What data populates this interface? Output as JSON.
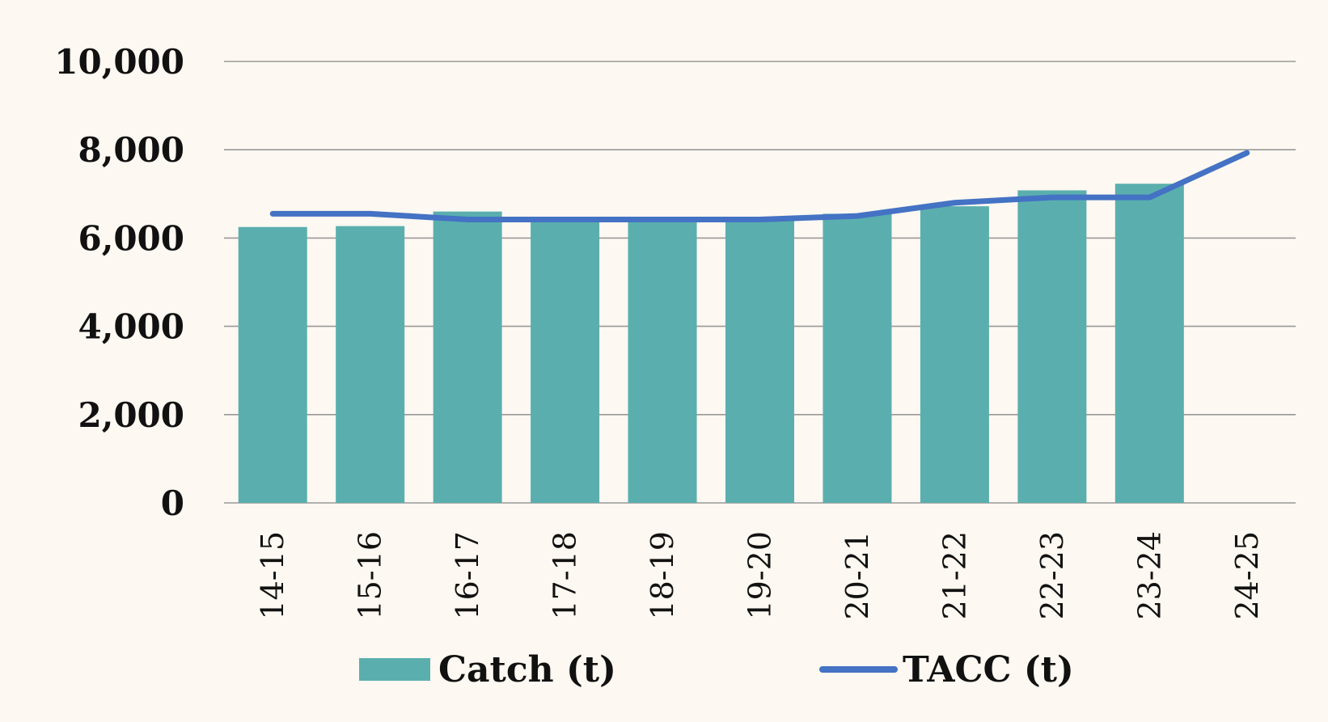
{
  "chart_data": {
    "type": "bar",
    "title": "",
    "xlabel": "",
    "ylabel": "",
    "categories": [
      "14-15",
      "15-16",
      "16-17",
      "17-18",
      "18-19",
      "19-20",
      "20-21",
      "21-22",
      "22-23",
      "23-24",
      "24-25"
    ],
    "ylim": [
      0,
      10000
    ],
    "yticks": [
      0,
      2000,
      4000,
      6000,
      8000,
      10000
    ],
    "ytick_labels": [
      "0",
      "2,000",
      "4,000",
      "6,000",
      "8,000",
      "10,000"
    ],
    "grid": true,
    "legend_position": "bottom",
    "series": [
      {
        "name": "Catch (t)",
        "type": "bar",
        "color": "#5aafae",
        "values": [
          6250,
          6270,
          6600,
          6450,
          6450,
          6400,
          6550,
          6720,
          7080,
          7230,
          null
        ]
      },
      {
        "name": "TACC (t)",
        "type": "line",
        "color": "#4472c4",
        "values": [
          6550,
          6550,
          6420,
          6420,
          6420,
          6420,
          6500,
          6800,
          6920,
          6920,
          7930
        ]
      }
    ],
    "colors": {
      "background": "#fdf8f1",
      "grid": "#999999",
      "text": "#111111"
    }
  }
}
